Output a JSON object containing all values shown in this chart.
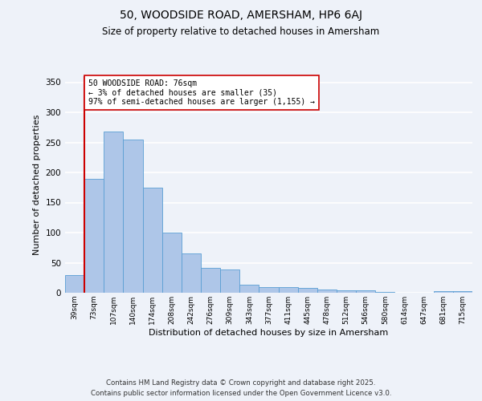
{
  "title1": "50, WOODSIDE ROAD, AMERSHAM, HP6 6AJ",
  "title2": "Size of property relative to detached houses in Amersham",
  "xlabel": "Distribution of detached houses by size in Amersham",
  "ylabel": "Number of detached properties",
  "bar_labels": [
    "39sqm",
    "73sqm",
    "107sqm",
    "140sqm",
    "174sqm",
    "208sqm",
    "242sqm",
    "276sqm",
    "309sqm",
    "343sqm",
    "377sqm",
    "411sqm",
    "445sqm",
    "478sqm",
    "512sqm",
    "546sqm",
    "580sqm",
    "614sqm",
    "647sqm",
    "681sqm",
    "715sqm"
  ],
  "bar_values": [
    30,
    190,
    268,
    255,
    175,
    100,
    65,
    41,
    39,
    13,
    9,
    9,
    8,
    5,
    4,
    4,
    1,
    0,
    0,
    3,
    3
  ],
  "bar_color": "#aec6e8",
  "bar_edge_color": "#5a9fd4",
  "vline_color": "#cc0000",
  "annotation_text": "50 WOODSIDE ROAD: 76sqm\n← 3% of detached houses are smaller (35)\n97% of semi-detached houses are larger (1,155) →",
  "annotation_box_color": "#ffffff",
  "annotation_box_edge": "#cc0000",
  "ylim": [
    0,
    360
  ],
  "yticks": [
    0,
    50,
    100,
    150,
    200,
    250,
    300,
    350
  ],
  "background_color": "#eef2f9",
  "grid_color": "#ffffff",
  "footer1": "Contains HM Land Registry data © Crown copyright and database right 2025.",
  "footer2": "Contains public sector information licensed under the Open Government Licence v3.0."
}
